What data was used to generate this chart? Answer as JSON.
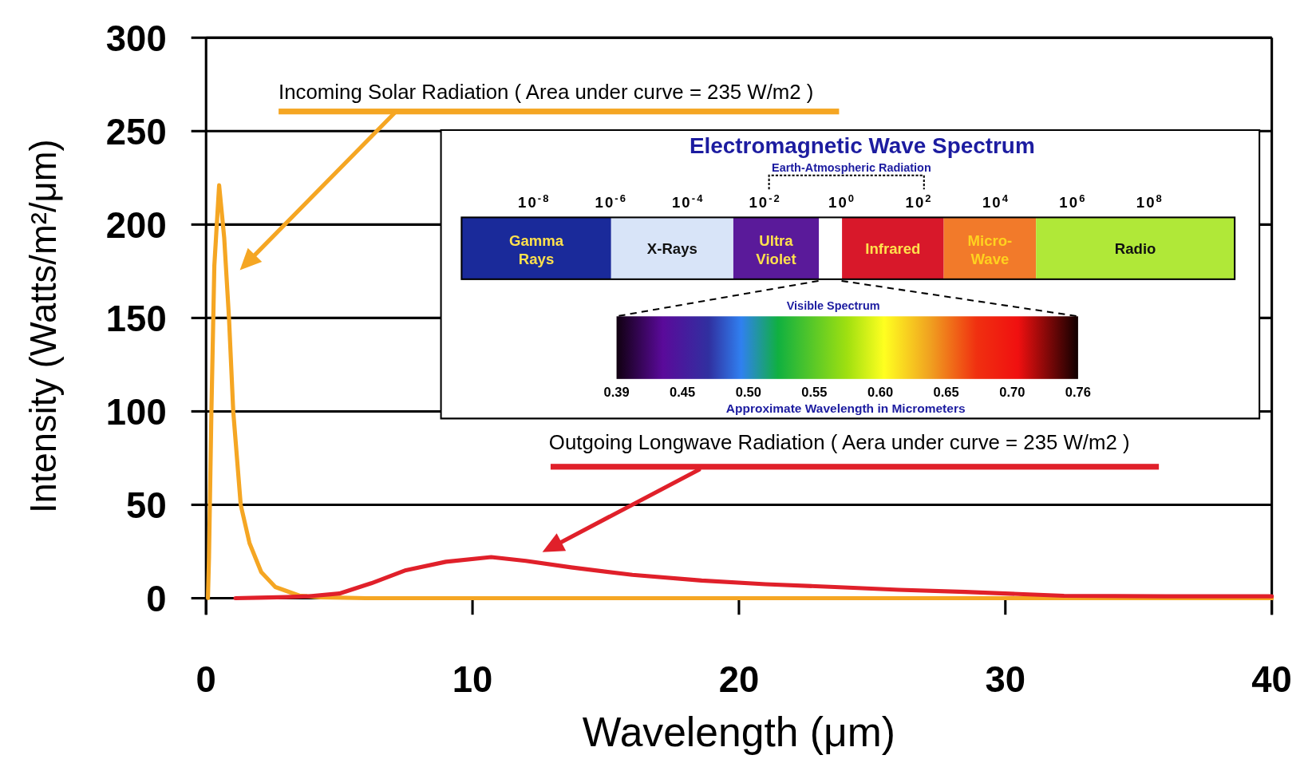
{
  "chart_data": [
    {
      "type": "line",
      "xlabel": "Wavelength (μm)",
      "ylabel": "Intensity (Watts/m²/μm)",
      "xlim": [
        0,
        40
      ],
      "xticks": [
        0,
        10,
        20,
        30,
        40
      ],
      "ylim": [
        0,
        300
      ],
      "yticks": [
        0,
        50,
        100,
        150,
        200,
        250,
        300
      ],
      "grid": "y",
      "series": [
        {
          "color": "#f5a623",
          "x": [
            0.07,
            0.11,
            0.2,
            0.31,
            0.49,
            0.68,
            0.86,
            1.02,
            1.3,
            1.63,
            2.07,
            2.6,
            3.5,
            4.3,
            6,
            10,
            20,
            30,
            40
          ],
          "values": [
            0,
            22,
            100,
            178,
            221,
            193,
            150,
            100,
            50,
            29.5,
            14,
            6,
            1.4,
            0.5,
            0,
            0,
            0,
            0,
            0
          ]
        },
        {
          "color": "#e0202a",
          "x": [
            1.1,
            2,
            3,
            3.8,
            5,
            6.2,
            7.5,
            9,
            10.7,
            12,
            13.7,
            16,
            18.6,
            21,
            23.6,
            26,
            28.5,
            32.2,
            36,
            40
          ],
          "values": [
            0,
            0.3,
            0.6,
            1,
            2.5,
            8,
            15,
            19.5,
            22,
            20,
            16.5,
            12.5,
            9.5,
            7.5,
            6,
            4.5,
            3.4,
            1.3,
            1,
            1
          ]
        }
      ],
      "annotations": [
        "Incoming Solar Radiation ( Area under curve = 235 W/m2 )",
        "Outgoing Longwave Radiation ( Aera under curve = 235 W/m2 )"
      ]
    },
    {
      "type": "bar",
      "orientation": "horizontal",
      "title": "Electromagnetic Wave Spectrum",
      "log": "x",
      "xlim": [
        1.3e-10,
        16000000000.0
      ],
      "categories": [
        null
      ],
      "xticks": [
        {
          "value": 1e-08,
          "label": "10$^{-8}$"
        },
        {
          "value": 1e-06,
          "label": "10$^{-6}$"
        },
        {
          "value": 0.0001,
          "label": "10$^{-4}$"
        },
        {
          "value": 0.01,
          "label": "10$^{-2}$"
        },
        {
          "value": 1,
          "label": "10$^{0}$"
        },
        {
          "value": 100,
          "label": "10$^{2}$"
        },
        {
          "value": 10000.0,
          "label": "10$^{4}$"
        },
        {
          "value": 1000000.0,
          "label": "10$^{6}$"
        },
        {
          "value": 100000000.0,
          "label": "10$^{8}$"
        }
      ],
      "series": [
        {
          "name": "Gamma Rays",
          "color": "#1a2a9a",
          "base": [
            1.3e-10
          ],
          "values": [
            9.9987e-07
          ]
        },
        {
          "name": "X-Rays",
          "color": "#d8e4f8",
          "base": [
            1e-06
          ],
          "values": [
            0.001499
          ]
        },
        {
          "name": "Ultra Violet",
          "color": "#5a1a9a",
          "base": [
            0.0015
          ],
          "values": [
            0.2485
          ]
        },
        {
          "name": "Infrared",
          "color": "#d8182a",
          "base": [
            1
          ],
          "values": [
            439
          ]
        },
        {
          "name": "Micro-Wave",
          "color": "#f27a2a",
          "base": [
            440
          ],
          "values": [
            109560
          ]
        },
        {
          "name": "Radio",
          "color": "#b0e838",
          "base": [
            110000
          ],
          "values": [
            15998900000.0
          ]
        }
      ],
      "annotations": [
        "Earth-Atmospheric Radiation",
        "Visible Spectrum",
        "0.39",
        "0.45",
        "0.50",
        "0.55",
        "0.60",
        "0.65",
        "0.70",
        "0.76",
        "Approximate Wavelength in Micrometers"
      ]
    }
  ]
}
